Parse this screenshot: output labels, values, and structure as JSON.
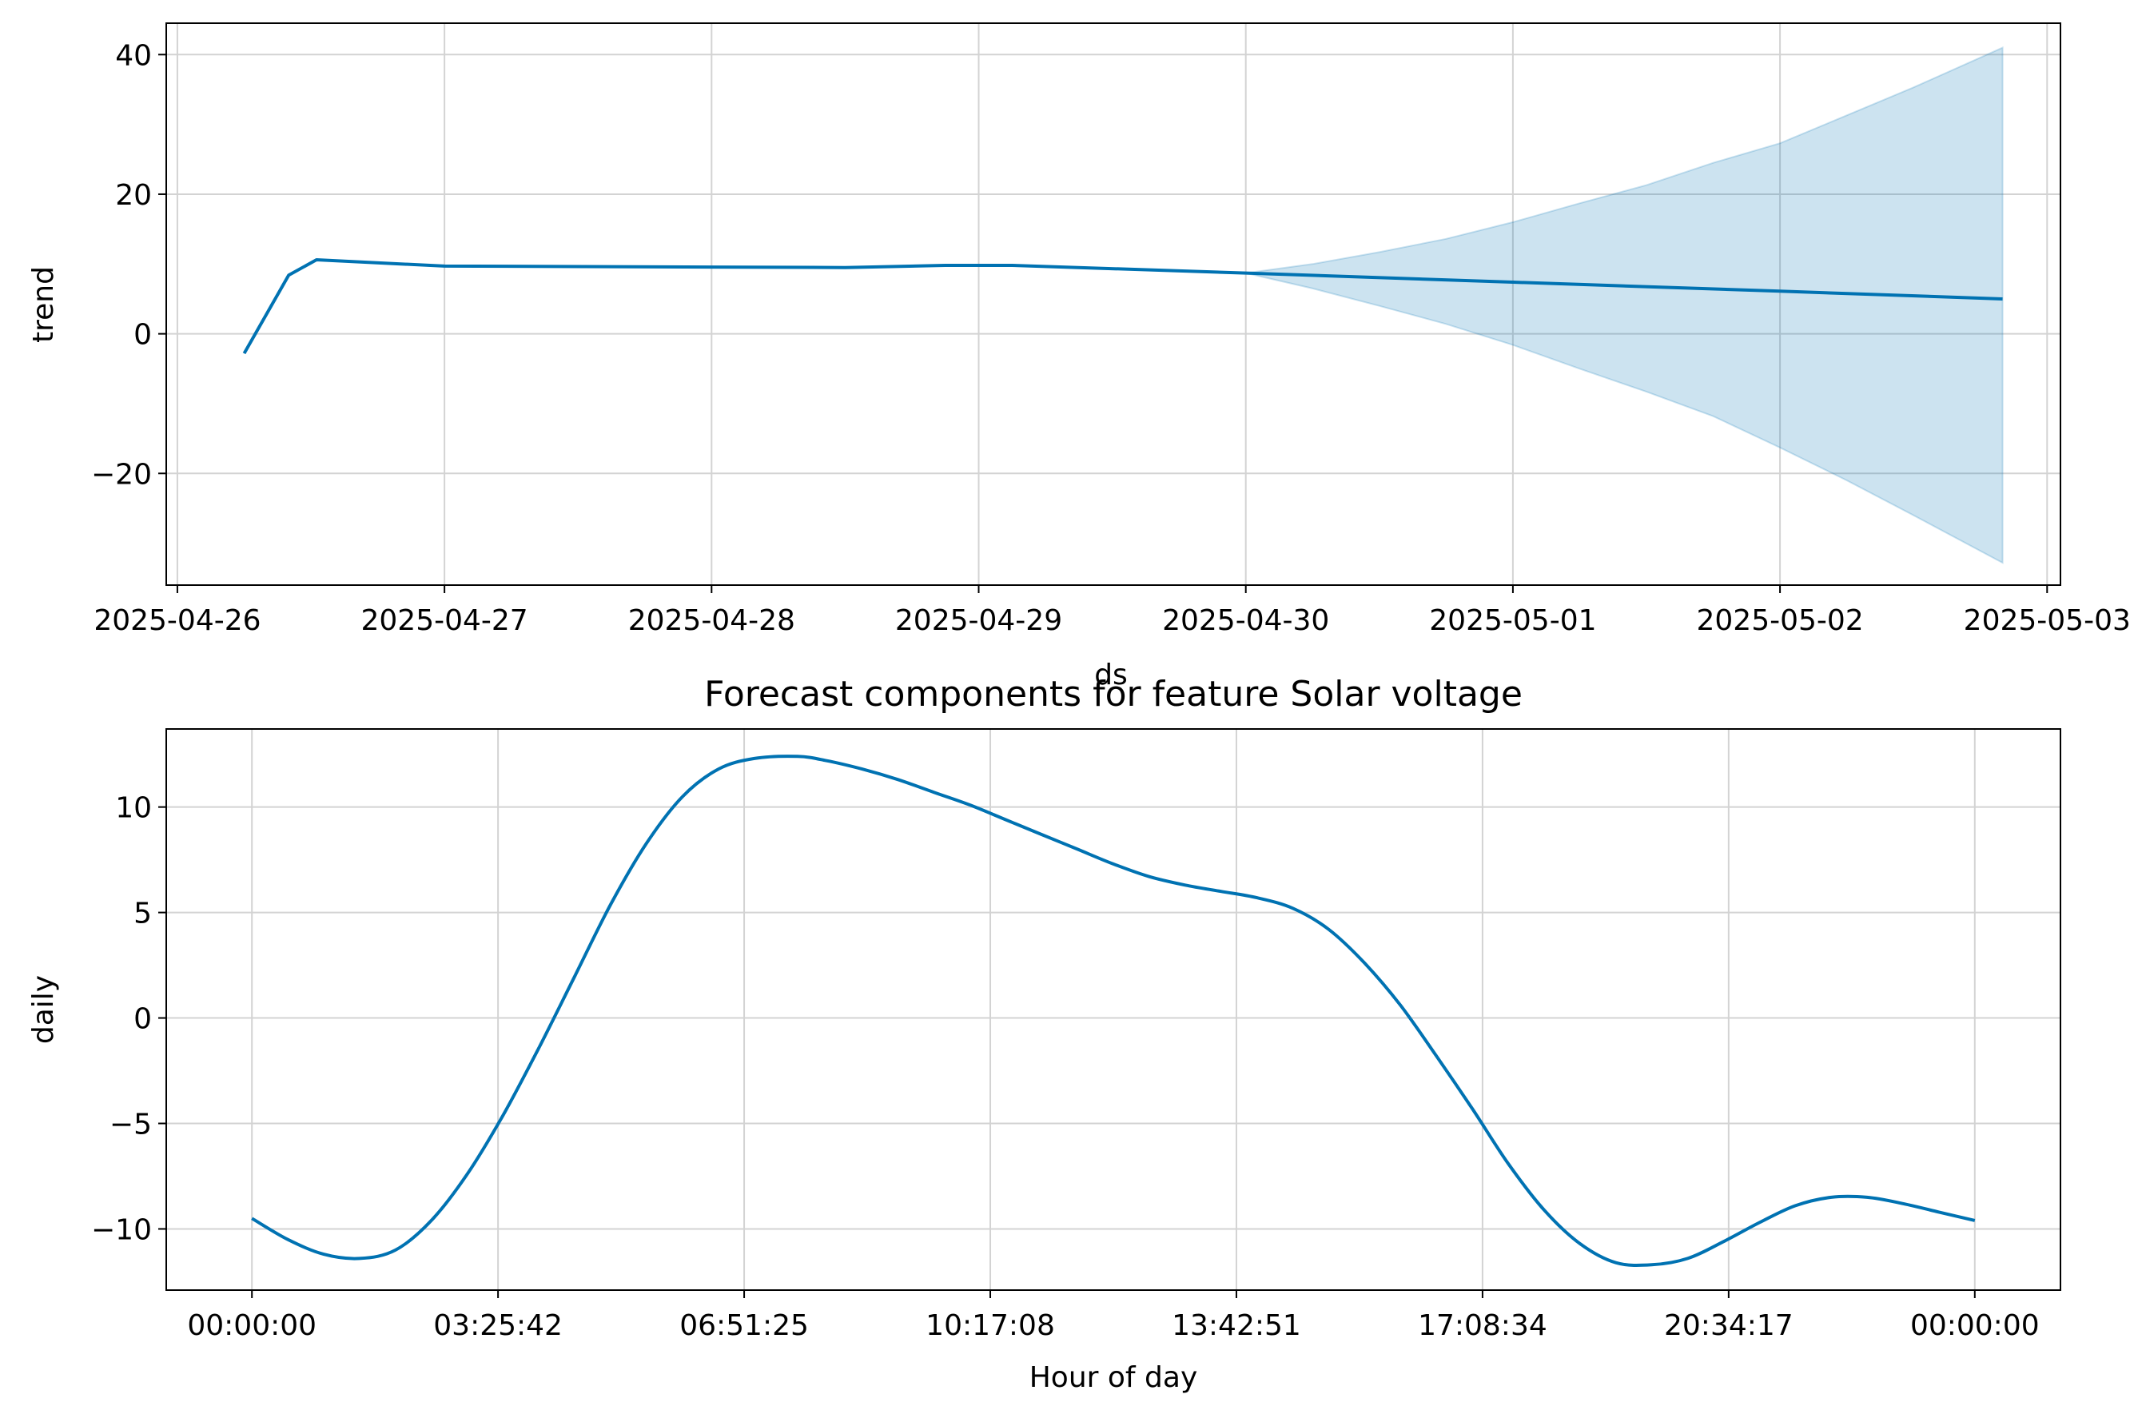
{
  "figure": {
    "title": "Forecast components for feature Solar voltage"
  },
  "colors": {
    "line": "#0072b2",
    "band": "#0072b2",
    "grid": "#d3d3d3",
    "axis": "#000000",
    "background": "#ffffff"
  },
  "chart_data": [
    {
      "type": "line",
      "name": "trend-panel",
      "title": "",
      "xlabel": "ds",
      "ylabel": "trend",
      "xlim": [
        "2025-04-25T23:00",
        "2025-05-03T01:12"
      ],
      "ylim": [
        -36,
        44.5
      ],
      "grid": true,
      "x_ticks": [
        "2025-04-26",
        "2025-04-27",
        "2025-04-28",
        "2025-04-29",
        "2025-04-30",
        "2025-05-01",
        "2025-05-02",
        "2025-05-03"
      ],
      "y_ticks": [
        "−20",
        "0",
        "20",
        "40"
      ],
      "y_tick_values": [
        -20,
        0,
        20,
        40
      ],
      "series": [
        {
          "kind": "line",
          "x": [
            "2025-04-26T06:00",
            "2025-04-26T10:00",
            "2025-04-26T12:30",
            "2025-04-27T00:00",
            "2025-04-28T12:00",
            "2025-04-28T21:00",
            "2025-04-29T03:00",
            "2025-04-30T00:00",
            "2025-05-01T00:00",
            "2025-05-02T00:00",
            "2025-05-02T20:00"
          ],
          "y": [
            -2.8,
            8.4,
            10.6,
            9.7,
            9.5,
            9.8,
            9.8,
            8.7,
            7.4,
            6.1,
            5.0
          ]
        },
        {
          "kind": "band",
          "x": [
            "2025-04-30T00:00",
            "2025-04-30T06:00",
            "2025-04-30T12:00",
            "2025-04-30T18:00",
            "2025-05-01T00:00",
            "2025-05-01T06:00",
            "2025-05-01T12:00",
            "2025-05-01T18:00",
            "2025-05-02T00:00",
            "2025-05-02T06:00",
            "2025-05-02T12:00",
            "2025-05-02T20:00"
          ],
          "upper": [
            8.7,
            10.0,
            11.7,
            13.6,
            16.0,
            18.7,
            21.3,
            24.5,
            27.3,
            31.3,
            35.3,
            41.0
          ],
          "lower": [
            8.7,
            6.5,
            4.0,
            1.4,
            -1.6,
            -5.0,
            -8.3,
            -11.8,
            -16.3,
            -21.0,
            -26.0,
            -32.8
          ]
        }
      ]
    },
    {
      "type": "line",
      "name": "daily-panel",
      "title": "Forecast components for feature Solar voltage",
      "xlabel": "Hour of day",
      "ylabel": "daily",
      "xlim_hours": [
        -1.1936,
        25.1936
      ],
      "ylim": [
        -12.9,
        13.7
      ],
      "grid": true,
      "x_ticks": [
        "00:00:00",
        "03:25:42",
        "06:51:25",
        "10:17:08",
        "13:42:51",
        "17:08:34",
        "20:34:17",
        "00:00:00"
      ],
      "x_tick_hours": [
        0,
        3.4283,
        6.8569,
        10.2856,
        13.7142,
        17.1428,
        20.5714,
        24
      ],
      "y_ticks": [
        "−10",
        "−5",
        "0",
        "5",
        "10"
      ],
      "y_tick_values": [
        -10,
        -5,
        0,
        5,
        10
      ],
      "series": [
        {
          "kind": "line",
          "x_hours": [
            0,
            0.5,
            1.0,
            1.5,
            2.0,
            2.5,
            3.0,
            3.5,
            4.0,
            4.5,
            5.0,
            5.5,
            6.0,
            6.5,
            7.0,
            7.6,
            8.0,
            8.5,
            9.0,
            9.5,
            10.0,
            10.5,
            11.0,
            11.5,
            12.0,
            12.5,
            13.0,
            13.5,
            14.0,
            14.5,
            15.0,
            15.5,
            16.0,
            16.5,
            17.0,
            17.5,
            18.0,
            18.5,
            19.0,
            19.5,
            20.0,
            20.5,
            21.0,
            21.5,
            22.0,
            22.5,
            23.0,
            23.5,
            24.0
          ],
          "y": [
            -9.5,
            -10.5,
            -11.2,
            -11.4,
            -11.0,
            -9.6,
            -7.4,
            -4.6,
            -1.4,
            2.0,
            5.4,
            8.3,
            10.5,
            11.8,
            12.3,
            12.4,
            12.2,
            11.8,
            11.3,
            10.7,
            10.1,
            9.4,
            8.7,
            8.0,
            7.3,
            6.7,
            6.3,
            6.0,
            5.7,
            5.2,
            4.2,
            2.6,
            0.6,
            -1.8,
            -4.3,
            -6.9,
            -9.1,
            -10.7,
            -11.6,
            -11.7,
            -11.4,
            -10.6,
            -9.7,
            -8.9,
            -8.5,
            -8.5,
            -8.8,
            -9.2,
            -9.6
          ]
        }
      ]
    }
  ]
}
